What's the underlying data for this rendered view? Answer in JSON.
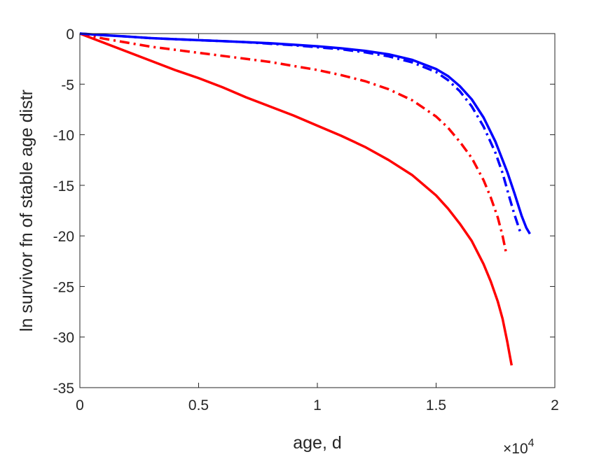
{
  "chart_data": {
    "type": "line",
    "xlabel": "age, d",
    "ylabel": "ln survivor fn of stable age distr",
    "x_multiplier_base": "×10",
    "x_multiplier_exp": "4",
    "xlim": [
      0,
      20000
    ],
    "ylim": [
      -35,
      0
    ],
    "xticks": [
      0,
      5000,
      10000,
      15000,
      20000
    ],
    "xtick_labels": [
      "0",
      "0.5",
      "1",
      "1.5",
      "2"
    ],
    "yticks": [
      0,
      -5,
      -10,
      -15,
      -20,
      -25,
      -30,
      -35
    ],
    "ytick_labels": [
      "0",
      "-5",
      "-10",
      "-15",
      "-20",
      "-25",
      "-30",
      "-35"
    ],
    "grid": false,
    "box": true,
    "series": [
      {
        "color": "#ff0000",
        "style": "solid",
        "x": [
          0,
          1000,
          2000,
          3000,
          4000,
          5000,
          6000,
          7000,
          8000,
          9000,
          10000,
          11000,
          12000,
          13000,
          14000,
          15000,
          15500,
          16000,
          16500,
          17000,
          17300,
          17600,
          17800,
          18000,
          18100,
          18180
        ],
        "y": [
          0,
          -0.9,
          -1.8,
          -2.7,
          -3.6,
          -4.4,
          -5.3,
          -6.3,
          -7.2,
          -8.1,
          -9.1,
          -10.1,
          -11.2,
          -12.5,
          -14.0,
          -16.0,
          -17.3,
          -18.8,
          -20.5,
          -22.8,
          -24.5,
          -26.5,
          -28.2,
          -30.5,
          -31.8,
          -32.8
        ]
      },
      {
        "color": "#ff0000",
        "style": "dashdot",
        "x": [
          0,
          1000,
          2000,
          3000,
          4000,
          5000,
          6000,
          7000,
          8000,
          9000,
          10000,
          11000,
          12000,
          13000,
          14000,
          15000,
          15500,
          16000,
          16500,
          17000,
          17300,
          17600,
          17800,
          17950
        ],
        "y": [
          0,
          -0.5,
          -0.9,
          -1.3,
          -1.6,
          -1.9,
          -2.2,
          -2.5,
          -2.8,
          -3.2,
          -3.6,
          -4.1,
          -4.7,
          -5.5,
          -6.6,
          -8.2,
          -9.3,
          -10.7,
          -12.3,
          -14.5,
          -16.2,
          -18.2,
          -20.0,
          -21.7
        ]
      },
      {
        "color": "#0000ff",
        "style": "solid",
        "x": [
          0,
          1000,
          2000,
          3000,
          4000,
          5000,
          6000,
          7000,
          8000,
          9000,
          10000,
          11000,
          12000,
          13000,
          14000,
          15000,
          15500,
          16000,
          16500,
          17000,
          17500,
          18000,
          18300,
          18600,
          18800,
          18950
        ],
        "y": [
          0,
          -0.15,
          -0.3,
          -0.45,
          -0.55,
          -0.65,
          -0.75,
          -0.85,
          -0.95,
          -1.1,
          -1.25,
          -1.45,
          -1.7,
          -2.05,
          -2.6,
          -3.5,
          -4.2,
          -5.2,
          -6.5,
          -8.3,
          -10.7,
          -13.7,
          -15.8,
          -18.0,
          -19.2,
          -19.8
        ]
      },
      {
        "color": "#0000ff",
        "style": "dashdot",
        "x": [
          0,
          1000,
          2000,
          3000,
          4000,
          5000,
          6000,
          7000,
          8000,
          9000,
          10000,
          11000,
          12000,
          13000,
          14000,
          15000,
          15500,
          16000,
          16500,
          17000,
          17500,
          17800,
          18100,
          18300,
          18500,
          18580
        ],
        "y": [
          0,
          -0.15,
          -0.3,
          -0.45,
          -0.55,
          -0.65,
          -0.75,
          -0.85,
          -1.0,
          -1.15,
          -1.35,
          -1.55,
          -1.85,
          -2.25,
          -2.85,
          -3.8,
          -4.6,
          -5.7,
          -7.2,
          -9.2,
          -11.8,
          -13.8,
          -16.3,
          -17.9,
          -19.3,
          -19.9
        ]
      }
    ]
  }
}
